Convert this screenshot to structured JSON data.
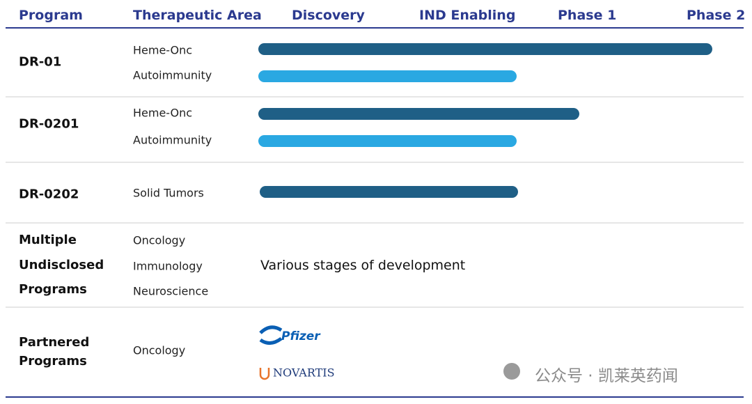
{
  "header": [
    "Program",
    "Therapeutic Area",
    "Discovery",
    "IND Enabling",
    "Phase 1",
    "Phase 2"
  ],
  "rows": [
    {
      "program": "DR-01",
      "areas": [
        "Heme-Onc",
        "Autoimmunity"
      ]
    },
    {
      "program": "DR-0201",
      "areas": [
        "Heme-Onc",
        "Autoimmunity"
      ]
    },
    {
      "program": "DR-0202",
      "areas": [
        "Solid Tumors"
      ]
    },
    {
      "program": "Multiple Undisclosed Programs",
      "areas": [
        "Oncology",
        "Immunology",
        "Neuroscience"
      ],
      "note": "Various stages of development"
    },
    {
      "program": "Partnered Programs",
      "areas": [
        "Oncology"
      ],
      "partners": [
        "Pfizer",
        "NOVARTIS"
      ]
    }
  ],
  "watermark": "公众号 · 凯莱英药闻"
}
